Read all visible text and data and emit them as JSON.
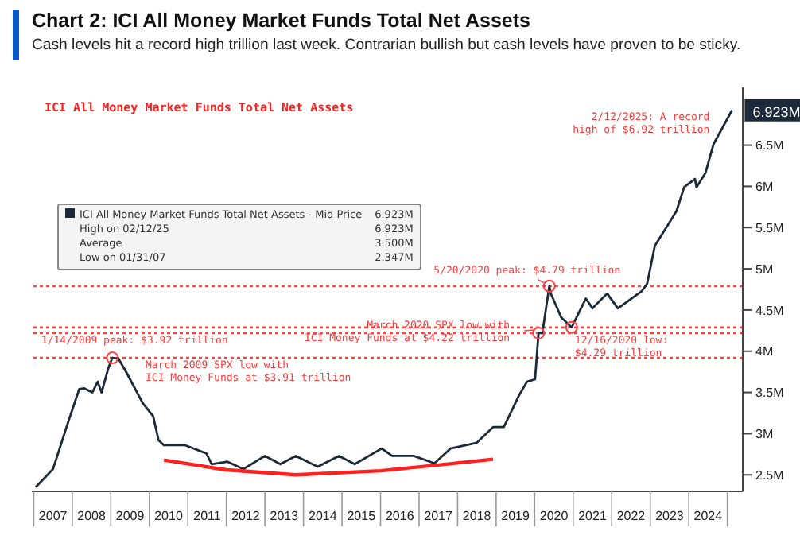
{
  "chart_data": {
    "type": "line",
    "title": "Chart 2: ICI All Money Market Funds Total Net Assets",
    "subtitle": "Cash levels hit a record high trillion last week. Contrarian bullish but cash levels have proven to be sticky.",
    "xlim": [
      2006.95,
      2025.4
    ],
    "xticks": [
      {
        "value": 2007.5,
        "label": "2007"
      },
      {
        "value": 2008.5,
        "label": "2008"
      },
      {
        "value": 2009.5,
        "label": "2009"
      },
      {
        "value": 2010.5,
        "label": "2010"
      },
      {
        "value": 2011.5,
        "label": "2011"
      },
      {
        "value": 2012.5,
        "label": "2012"
      },
      {
        "value": 2013.5,
        "label": "2013"
      },
      {
        "value": 2014.5,
        "label": "2014"
      },
      {
        "value": 2015.5,
        "label": "2015"
      },
      {
        "value": 2016.5,
        "label": "2016"
      },
      {
        "value": 2017.5,
        "label": "2017"
      },
      {
        "value": 2018.5,
        "label": "2018"
      },
      {
        "value": 2019.5,
        "label": "2019"
      },
      {
        "value": 2020.5,
        "label": "2020"
      },
      {
        "value": 2021.5,
        "label": "2021"
      },
      {
        "value": 2022.5,
        "label": "2022"
      },
      {
        "value": 2023.5,
        "label": "2023"
      },
      {
        "value": 2024.5,
        "label": "2024"
      }
    ],
    "ylim": [
      2.3,
      7.2
    ],
    "yticks": [
      {
        "value": 2.5,
        "label": "2.5M"
      },
      {
        "value": 3,
        "label": "3M"
      },
      {
        "value": 3.5,
        "label": "3.5M"
      },
      {
        "value": 4,
        "label": "4M"
      },
      {
        "value": 4.5,
        "label": "4.5M"
      },
      {
        "value": 5,
        "label": "5M"
      },
      {
        "value": 5.5,
        "label": "5.5M"
      },
      {
        "value": 6,
        "label": "6M"
      },
      {
        "value": 6.5,
        "label": "6.5M"
      }
    ],
    "legend": "top left",
    "grid": false,
    "marker": "none",
    "line_style": "solid",
    "series": [
      {
        "name": "ICI All Money Market Funds Total Net Assets - Mid Price",
        "color": "#1b2a3a",
        "x": [
          2007.05,
          2007.5,
          2007.9,
          2008.18,
          2008.31,
          2008.52,
          2008.66,
          2008.76,
          2008.94,
          2009.04,
          2009.2,
          2009.42,
          2009.83,
          2010.1,
          2010.24,
          2010.38,
          2010.93,
          2011.48,
          2011.62,
          2012.03,
          2012.44,
          2013.0,
          2013.4,
          2013.8,
          2014.37,
          2014.92,
          2015.33,
          2016.03,
          2016.3,
          2016.86,
          2017.4,
          2017.82,
          2018.5,
          2018.92,
          2019.2,
          2019.6,
          2019.8,
          2020.01,
          2020.1,
          2020.2,
          2020.38,
          2020.42,
          2020.69,
          2020.96,
          2021.33,
          2021.5,
          2021.88,
          2022.16,
          2022.78,
          2022.92,
          2023.12,
          2023.47,
          2023.68,
          2023.88,
          2024.16,
          2024.2,
          2024.43,
          2024.64,
          2025.12
        ],
        "values": [
          2.35,
          2.57,
          3.15,
          3.54,
          3.55,
          3.5,
          3.63,
          3.5,
          3.8,
          3.92,
          3.91,
          3.73,
          3.37,
          3.21,
          2.92,
          2.86,
          2.86,
          2.76,
          2.63,
          2.66,
          2.57,
          2.73,
          2.63,
          2.73,
          2.6,
          2.73,
          2.63,
          2.82,
          2.73,
          2.73,
          2.64,
          2.82,
          2.89,
          3.08,
          3.08,
          3.47,
          3.63,
          3.66,
          4.22,
          4.22,
          4.79,
          4.7,
          4.41,
          4.29,
          4.64,
          4.52,
          4.7,
          4.52,
          4.73,
          4.82,
          5.28,
          5.54,
          5.7,
          5.99,
          6.09,
          5.99,
          6.16,
          6.51,
          6.923
        ]
      },
      {
        "type": "line",
        "color": "#ff2020",
        "x": [
          2010.38,
          2012,
          2013.8,
          2016,
          2017.5,
          2018.92
        ],
        "values": [
          2.68,
          2.56,
          2.5,
          2.55,
          2.62,
          2.69
        ]
      }
    ],
    "ref_lines": [
      {
        "axis": "y",
        "value": 3.92,
        "color": "#ff4040",
        "line_style": "dotted"
      },
      {
        "axis": "y",
        "value": 4.79,
        "color": "#ff4040",
        "line_style": "dotted"
      },
      {
        "axis": "y",
        "value": 4.29,
        "color": "#ff4040",
        "line_style": "dotted"
      },
      {
        "axis": "y",
        "value": 4.22,
        "color": "#ff4040",
        "line_style": "dotted"
      }
    ],
    "annotations": [
      "ICI All Money Market Funds Total Net Assets",
      "6.923M",
      "High on 02/12/25",
      "6.923M",
      "Average",
      "3.500M",
      "Low on 01/31/07",
      "2.347M",
      {
        "text": "1/14/2009 peak: $3.92 trillion",
        "x": 2009.04,
        "y": 3.92
      },
      {
        "text": "March 2009 SPX low with\nICI Money Funds at $3.91 trillion",
        "x": 2009.2,
        "y": 3.91
      },
      {
        "text": "March 2020 SPX low with\nICI Money Funds at $4.22 trillion",
        "x": 2020.1,
        "y": 4.22
      },
      {
        "text": "5/20/2020 peak: $4.79 trillion",
        "x": 2020.38,
        "y": 4.79
      },
      {
        "text": "12/16/2020 low:\n$4.29 trillion",
        "x": 2020.96,
        "y": 4.29
      },
      {
        "text": "2/12/2025: A record\nhigh of $6.92 trillion",
        "x": 2025.12,
        "y": 6.923
      },
      {
        "text": "6.923M",
        "x": 2025.12,
        "y": 6.923
      }
    ]
  }
}
